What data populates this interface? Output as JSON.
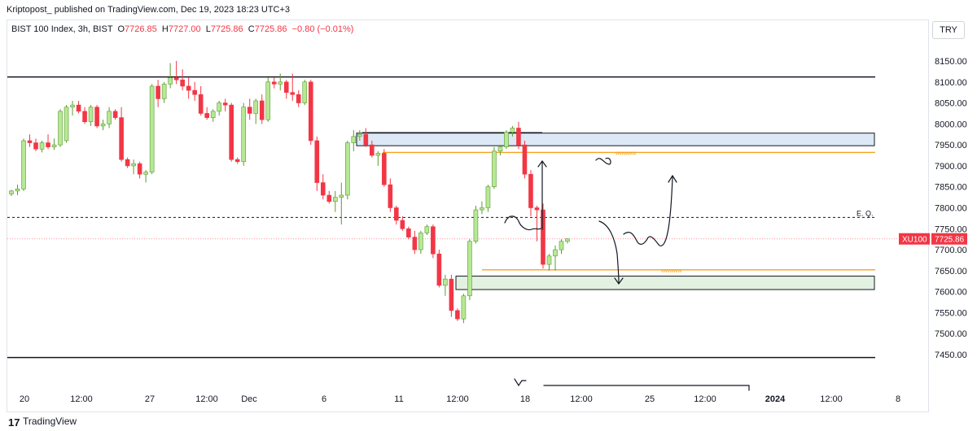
{
  "header": {
    "published": "Kriptopost_  published on TradingView.com, Dec 19, 2023 18:23 UTC+3"
  },
  "legend": {
    "symbol": "BIST 100 Index, 3h, BIST",
    "o_label": "O",
    "o": "7726.85",
    "h_label": "H",
    "h": "7727.00",
    "l_label": "L",
    "l": "7725.86",
    "c_label": "C",
    "c": "7725.86",
    "change": "−0.80 (−0.01%)"
  },
  "currency": "TRY",
  "footer": {
    "logo": "17",
    "brand": "TradingView"
  },
  "colors": {
    "up": "#b7e895",
    "up_border": "#5b9a32",
    "down": "#f23645",
    "zone_blue": "#dce8f5",
    "zone_green": "#e3f1e1",
    "orange": "#f7a21b"
  },
  "chart_data": {
    "type": "candlestick",
    "symbol": "XU100",
    "interval": "3h",
    "ylim": [
      7410,
      8200
    ],
    "y_ticks": [
      7450,
      7500,
      7550,
      7600,
      7650,
      7700,
      7750,
      7800,
      7850,
      7900,
      7950,
      8000,
      8050,
      8100,
      8150
    ],
    "y_tick_labels": [
      "7450.00",
      "7500.00",
      "7550.00",
      "7600.00",
      "7650.00",
      "7700.00",
      "7750.00",
      "7800.00",
      "7850.00",
      "7900.00",
      "7950.00",
      "8000.00",
      "8050.00",
      "8100.00",
      "8150.00"
    ],
    "x_ticks": [
      "20",
      "12:00",
      "27",
      "12:00",
      "Dec",
      "6",
      "11",
      "12:00",
      "18",
      "12:00",
      "25",
      "12:00",
      "2024",
      "12:00",
      "8"
    ],
    "last_price_tag": {
      "symbol": "XU100",
      "value": "7725.86",
      "price": 7725.86
    },
    "annotations": {
      "eq_label": "E. Q.",
      "eq_level": 7777,
      "top_level": 8112,
      "bottom_level": 7443,
      "orange_upper": 7932,
      "orange_lower": 7652,
      "orange_upper_label": "wwwww",
      "orange_lower_label": "wwwww",
      "supply_zone": [
        7948,
        7978
      ],
      "demand_zone": [
        7605,
        7637
      ]
    },
    "candles": [
      [
        7833,
        7843,
        7828,
        7840
      ],
      [
        7840,
        7855,
        7830,
        7845
      ],
      [
        7845,
        7965,
        7840,
        7960
      ],
      [
        7960,
        7975,
        7945,
        7955
      ],
      [
        7955,
        7965,
        7935,
        7940
      ],
      [
        7940,
        7960,
        7932,
        7955
      ],
      [
        7955,
        7975,
        7940,
        7945
      ],
      [
        7945,
        7965,
        7938,
        7950
      ],
      [
        7950,
        8035,
        7945,
        8030
      ],
      [
        7960,
        8045,
        7955,
        8040
      ],
      [
        8040,
        8055,
        8020,
        8045
      ],
      [
        8045,
        8055,
        8025,
        8030
      ],
      [
        8030,
        8040,
        8000,
        8005
      ],
      [
        8005,
        8045,
        7995,
        8040
      ],
      [
        8040,
        8045,
        7990,
        7995
      ],
      [
        7995,
        8010,
        7985,
        8000
      ],
      [
        8000,
        8040,
        7990,
        8030
      ],
      [
        8030,
        8035,
        8010,
        8015
      ],
      [
        8015,
        8040,
        7910,
        7915
      ],
      [
        7915,
        7920,
        7895,
        7900
      ],
      [
        7900,
        7915,
        7880,
        7905
      ],
      [
        7905,
        7910,
        7870,
        7880
      ],
      [
        7880,
        7890,
        7860,
        7885
      ],
      [
        7885,
        8095,
        7880,
        8090
      ],
      [
        8090,
        8105,
        8040,
        8060
      ],
      [
        8060,
        8100,
        8050,
        8095
      ],
      [
        8095,
        8145,
        8085,
        8110
      ],
      [
        8110,
        8150,
        8095,
        8105
      ],
      [
        8105,
        8130,
        8080,
        8090
      ],
      [
        8090,
        8110,
        8060,
        8080
      ],
      [
        8080,
        8100,
        8055,
        8070
      ],
      [
        8070,
        8090,
        8020,
        8025
      ],
      [
        8025,
        8040,
        8010,
        8015
      ],
      [
        8015,
        8035,
        8005,
        8030
      ],
      [
        8030,
        8055,
        8020,
        8050
      ],
      [
        8050,
        8060,
        8030,
        8045
      ],
      [
        8045,
        8050,
        7910,
        7915
      ],
      [
        7915,
        7920,
        7905,
        7910
      ],
      [
        7910,
        8050,
        7900,
        8040
      ],
      [
        8040,
        8060,
        8010,
        8025
      ],
      [
        8025,
        8060,
        8000,
        8055
      ],
      [
        8055,
        8070,
        8000,
        8010
      ],
      [
        8010,
        8110,
        8005,
        8100
      ],
      [
        8100,
        8110,
        8085,
        8095
      ],
      [
        8095,
        8120,
        8080,
        8100
      ],
      [
        8100,
        8105,
        8060,
        8075
      ],
      [
        8075,
        8120,
        8055,
        8070
      ],
      [
        8070,
        8080,
        8040,
        8050
      ],
      [
        8050,
        8105,
        8045,
        8100
      ],
      [
        8100,
        8105,
        7950,
        7960
      ],
      [
        7960,
        7970,
        7840,
        7860
      ],
      [
        7860,
        7880,
        7820,
        7830
      ],
      [
        7830,
        7840,
        7810,
        7815
      ],
      [
        7815,
        7840,
        7790,
        7825
      ],
      [
        7825,
        7860,
        7760,
        7830
      ],
      [
        7830,
        7960,
        7820,
        7955
      ],
      [
        7955,
        7985,
        7935,
        7970
      ],
      [
        7970,
        7985,
        7960,
        7975
      ],
      [
        7975,
        7990,
        7945,
        7950
      ],
      [
        7950,
        7960,
        7920,
        7925
      ],
      [
        7925,
        7935,
        7900,
        7930
      ],
      [
        7930,
        7940,
        7850,
        7855
      ],
      [
        7855,
        7870,
        7790,
        7800
      ],
      [
        7800,
        7805,
        7760,
        7770
      ],
      [
        7770,
        7780,
        7745,
        7750
      ],
      [
        7750,
        7755,
        7725,
        7730
      ],
      [
        7730,
        7745,
        7690,
        7700
      ],
      [
        7700,
        7745,
        7690,
        7740
      ],
      [
        7740,
        7760,
        7735,
        7755
      ],
      [
        7755,
        7760,
        7680,
        7690
      ],
      [
        7690,
        7700,
        7610,
        7615
      ],
      [
        7615,
        7640,
        7590,
        7630
      ],
      [
        7630,
        7640,
        7540,
        7555
      ],
      [
        7555,
        7560,
        7530,
        7535
      ],
      [
        7535,
        7595,
        7525,
        7590
      ],
      [
        7590,
        7725,
        7580,
        7720
      ],
      [
        7720,
        7805,
        7715,
        7795
      ],
      [
        7795,
        7815,
        7785,
        7800
      ],
      [
        7800,
        7855,
        7790,
        7850
      ],
      [
        7850,
        7945,
        7845,
        7935
      ],
      [
        7935,
        7950,
        7925,
        7945
      ],
      [
        7945,
        7985,
        7940,
        7980
      ],
      [
        7980,
        7995,
        7970,
        7990
      ],
      [
        7990,
        8005,
        7940,
        7950
      ],
      [
        7950,
        7960,
        7870,
        7880
      ],
      [
        7880,
        7890,
        7780,
        7800
      ],
      [
        7800,
        7805,
        7720,
        7795
      ],
      [
        7795,
        7810,
        7655,
        7665
      ],
      [
        7665,
        7690,
        7650,
        7685
      ],
      [
        7685,
        7710,
        7650,
        7700
      ],
      [
        7700,
        7725,
        7690,
        7720
      ],
      [
        7720,
        7727,
        7715,
        7726
      ]
    ]
  }
}
